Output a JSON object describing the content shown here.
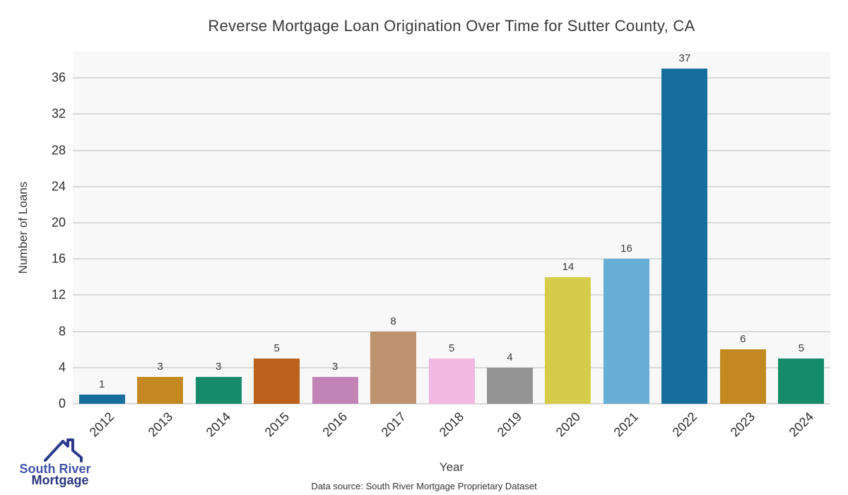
{
  "chart_data": {
    "type": "bar",
    "title": "Reverse Mortgage Loan Origination Over Time for Sutter County, CA",
    "xlabel": "Year",
    "ylabel": "Number of Loans",
    "categories": [
      "2012",
      "2013",
      "2014",
      "2015",
      "2016",
      "2017",
      "2018",
      "2019",
      "2020",
      "2021",
      "2022",
      "2023",
      "2024"
    ],
    "values": [
      1,
      3,
      3,
      5,
      3,
      8,
      5,
      4,
      14,
      16,
      37,
      6,
      5
    ],
    "bar_colors": [
      "#176d9c",
      "#c38820",
      "#158b6a",
      "#ba611b",
      "#c283b6",
      "#bd926e",
      "#f2b8e0",
      "#949494",
      "#d5cc4a",
      "#68afd7",
      "#176d9c",
      "#c38820",
      "#158b6a"
    ],
    "yticks": [
      0,
      4,
      8,
      12,
      16,
      20,
      24,
      28,
      32,
      36
    ],
    "ylim": [
      0,
      38.9
    ],
    "grid": true,
    "legend": "none",
    "plot_bg": "#f8f8f8",
    "grid_color": "#d9d9d9",
    "value_labels": true
  },
  "footer": {
    "data_source": "Data source: South River Mortgage Proprietary Dataset"
  },
  "logo": {
    "line1": "South River",
    "line2": "Mortgage",
    "roof_color": "#2b3a8c",
    "line1_color": "#4253a8",
    "line2_color": "#28337e",
    "icon": "house-roof-icon"
  }
}
